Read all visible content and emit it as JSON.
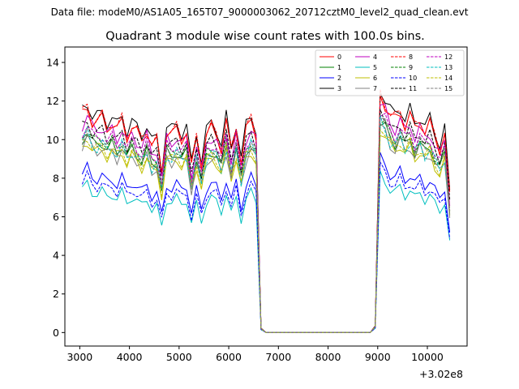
{
  "header": {
    "suptitle": "Data file: modeM0/AS1A05_165T07_9000003062_20712cztM0_level2_quad_clean.evt"
  },
  "chart_data": {
    "type": "line",
    "title": "Quadrant 3 module wise count rates with 100.0s bins.",
    "xlabel": "",
    "ylabel": "",
    "x_offset_label": "+3.02e8",
    "xlim": [
      2700,
      10800
    ],
    "ylim": [
      -0.7,
      14.8
    ],
    "xticks": [
      3000,
      4000,
      5000,
      6000,
      7000,
      8000,
      9000,
      10000
    ],
    "yticks": [
      0,
      2,
      4,
      6,
      8,
      10,
      12,
      14
    ],
    "xticklabels": [
      "3000",
      "4000",
      "5000",
      "6000",
      "7000",
      "8000",
      "9000",
      "10000"
    ],
    "yticklabels": [
      "0",
      "2",
      "4",
      "6",
      "8",
      "10",
      "12",
      "14"
    ],
    "x": [
      3050,
      3150,
      3250,
      3350,
      3450,
      3550,
      3650,
      3750,
      3850,
      3950,
      4050,
      4150,
      4250,
      4350,
      4450,
      4550,
      4650,
      4750,
      4850,
      4950,
      5050,
      5150,
      5250,
      5350,
      5450,
      5550,
      5650,
      5750,
      5850,
      5950,
      6050,
      6150,
      6250,
      6350,
      6450,
      6550,
      6650,
      6750,
      6850,
      6950,
      7050,
      7150,
      7250,
      7350,
      7450,
      7550,
      7650,
      7750,
      7850,
      7950,
      8050,
      8150,
      8250,
      8350,
      8450,
      8550,
      8650,
      8750,
      8850,
      8950,
      9050,
      9150,
      9250,
      9350,
      9450,
      9550,
      9650,
      9750,
      9850,
      9950,
      10050,
      10150,
      10250,
      10350,
      10450
    ],
    "pattern": [
      1.0,
      1.04,
      0.98,
      0.97,
      0.99,
      0.95,
      0.97,
      0.93,
      0.98,
      0.91,
      0.95,
      0.92,
      0.89,
      0.94,
      0.86,
      0.88,
      0.74,
      0.93,
      0.91,
      0.94,
      0.9,
      0.93,
      0.76,
      0.9,
      0.78,
      0.91,
      0.94,
      0.92,
      0.85,
      0.97,
      0.83,
      0.95,
      0.79,
      0.93,
      0.98,
      0.92,
      0.02,
      0,
      0,
      0,
      0,
      0,
      0,
      0,
      0,
      0,
      0,
      0,
      0,
      0,
      0,
      0,
      0,
      0,
      0,
      0,
      0,
      0,
      0,
      0.03,
      1.1,
      1.06,
      1.0,
      0.98,
      1.02,
      0.96,
      1.0,
      0.94,
      0.98,
      0.93,
      0.96,
      0.9,
      0.85,
      0.92,
      0.63
    ],
    "series": [
      {
        "name": "0",
        "level": 11.2,
        "color": "#ff0000",
        "dash": "solid"
      },
      {
        "name": "1",
        "level": 10.0,
        "color": "#008000",
        "dash": "solid"
      },
      {
        "name": "2",
        "level": 8.2,
        "color": "#0000ff",
        "dash": "solid"
      },
      {
        "name": "3",
        "level": 11.5,
        "color": "#000000",
        "dash": "solid"
      },
      {
        "name": "4",
        "level": 10.8,
        "color": "#bf00bf",
        "dash": "solid"
      },
      {
        "name": "5",
        "level": 7.4,
        "color": "#00bfbf",
        "dash": "solid"
      },
      {
        "name": "6",
        "level": 9.6,
        "color": "#bfbf00",
        "dash": "solid"
      },
      {
        "name": "7",
        "level": 9.7,
        "color": "#808080",
        "dash": "solid"
      },
      {
        "name": "8",
        "level": 11.3,
        "color": "#ff0000",
        "dash": "dashed"
      },
      {
        "name": "9",
        "level": 10.2,
        "color": "#008000",
        "dash": "dashed"
      },
      {
        "name": "10",
        "level": 7.8,
        "color": "#0000ff",
        "dash": "dashed"
      },
      {
        "name": "11",
        "level": 10.6,
        "color": "#000000",
        "dash": "dashed"
      },
      {
        "name": "12",
        "level": 10.4,
        "color": "#bf00bf",
        "dash": "dashed"
      },
      {
        "name": "13",
        "level": 9.9,
        "color": "#00bfbf",
        "dash": "dashed"
      },
      {
        "name": "14",
        "level": 9.8,
        "color": "#bfbf00",
        "dash": "dashed"
      },
      {
        "name": "15",
        "level": 10.1,
        "color": "#808080",
        "dash": "dashed"
      }
    ],
    "legend": {
      "location": "upper-right",
      "columns": 4
    }
  }
}
